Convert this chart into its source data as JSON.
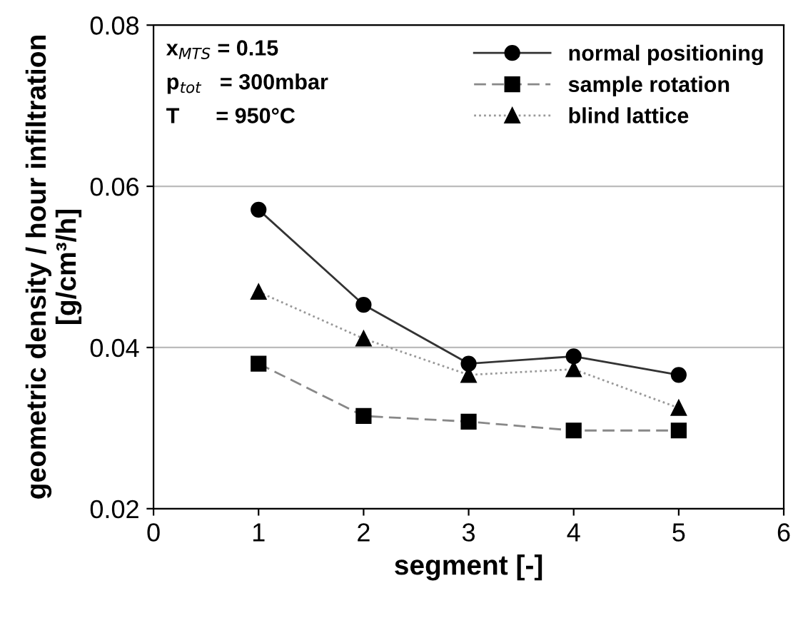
{
  "chart_data": {
    "type": "line",
    "xlabel": "segment [-]",
    "ylabel": "geometric density / hour infiltration\n[g/cm³/h]",
    "x": [
      1,
      2,
      3,
      4,
      5
    ],
    "series": [
      {
        "name": "normal positioning",
        "color": "#333333",
        "marker": "circle",
        "line_style": "solid",
        "values": [
          0.0571,
          0.0453,
          0.038,
          0.0389,
          0.0366
        ]
      },
      {
        "name": "sample rotation",
        "color": "#888888",
        "marker": "square",
        "line_style": "dashed",
        "values": [
          0.038,
          0.0315,
          0.0308,
          0.0297,
          0.0297
        ]
      },
      {
        "name": "blind lattice",
        "color": "#999999",
        "marker": "triangle",
        "line_style": "dotted",
        "values": [
          0.0469,
          0.0411,
          0.0366,
          0.0373,
          0.0325
        ]
      }
    ],
    "annotations": [
      "x$_{MTS}$ = 0.15",
      "p$_{tot}$   = 300mbar",
      "T      = 950°C"
    ],
    "xlim": [
      0,
      6
    ],
    "xticks": [
      0,
      1,
      2,
      3,
      4,
      5,
      6
    ],
    "ylim": [
      0.02,
      0.08
    ],
    "yticks": [
      {
        "value": 0.02,
        "label": "0.02"
      },
      {
        "value": 0.04,
        "label": "0.04"
      },
      {
        "value": 0.06,
        "label": "0.06"
      },
      {
        "value": 0.08,
        "label": "0.08"
      }
    ],
    "grid": "y",
    "legend": "top right"
  }
}
